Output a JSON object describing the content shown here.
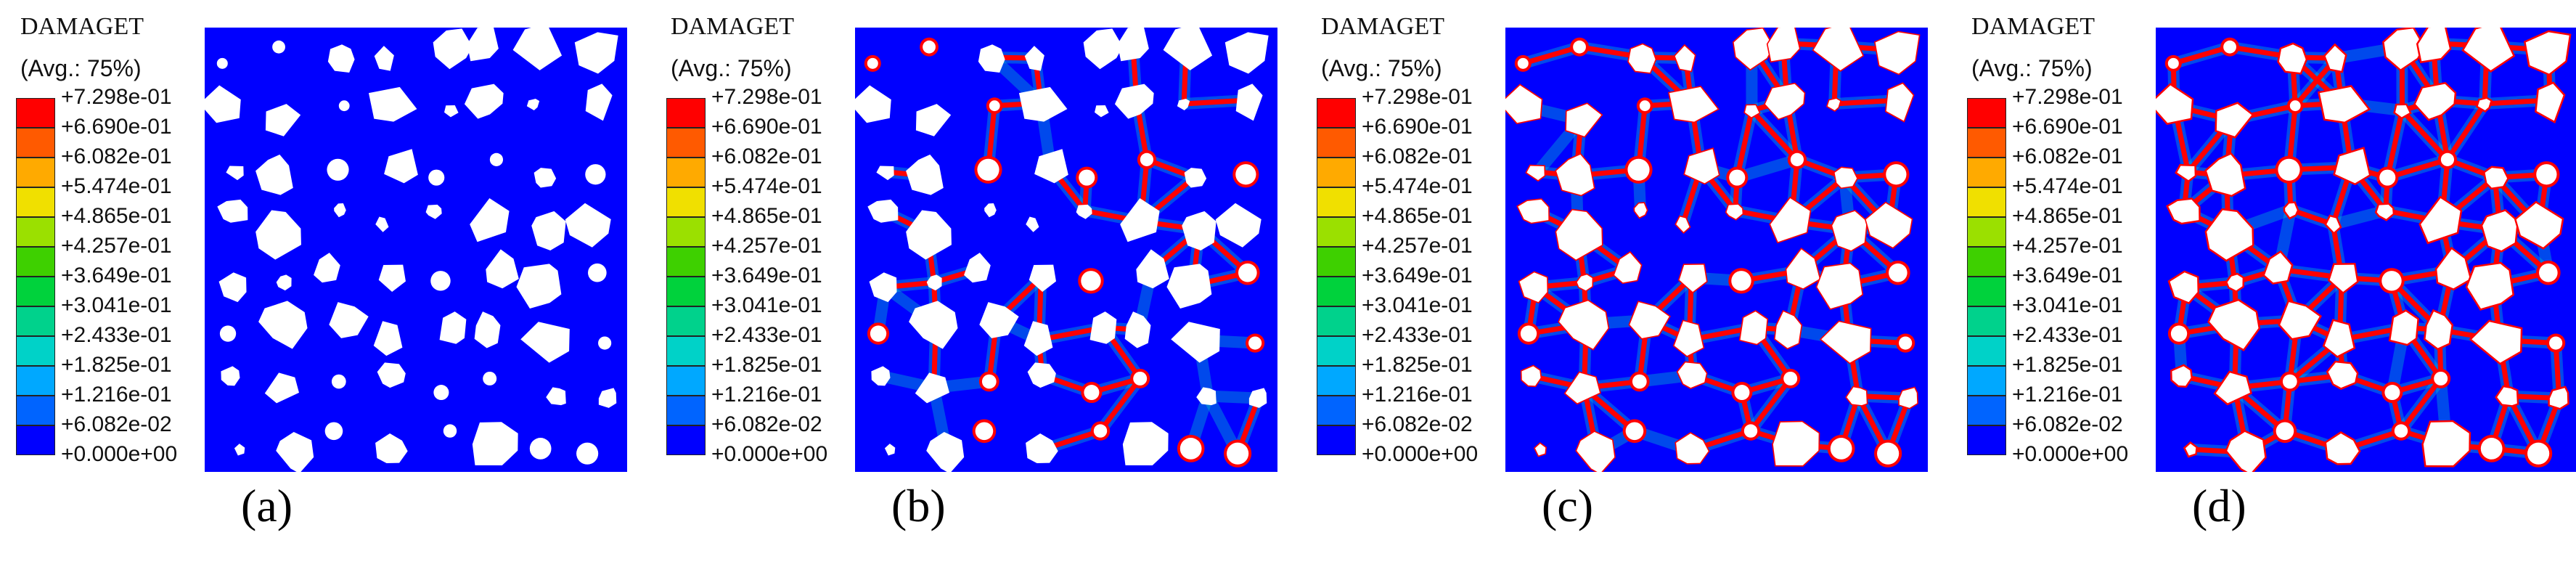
{
  "legend": {
    "title": "DAMAGET",
    "subtitle": "(Avg.: 75%)",
    "ticks": [
      "+7.298e-01",
      "+6.690e-01",
      "+6.082e-01",
      "+5.474e-01",
      "+4.865e-01",
      "+4.257e-01",
      "+3.649e-01",
      "+3.041e-01",
      "+2.433e-01",
      "+1.825e-01",
      "+1.216e-01",
      "+6.082e-02",
      "+0.000e+00"
    ],
    "colors": [
      "#ff0000",
      "#ff5a00",
      "#ffaa00",
      "#f0e000",
      "#9be000",
      "#3ed000",
      "#00d23c",
      "#00d28c",
      "#00d2c8",
      "#00a8ff",
      "#0064ff",
      "#0000ff"
    ]
  },
  "panels": [
    {
      "caption": "(a)",
      "damage_level": 0.0
    },
    {
      "caption": "(b)",
      "damage_level": 0.35
    },
    {
      "caption": "(c)",
      "damage_level": 0.65
    },
    {
      "caption": "(d)",
      "damage_level": 1.0
    }
  ],
  "colors": {
    "matrix": "#0000ff",
    "aggregate": "#ffffff",
    "damage": "#ff0000"
  }
}
